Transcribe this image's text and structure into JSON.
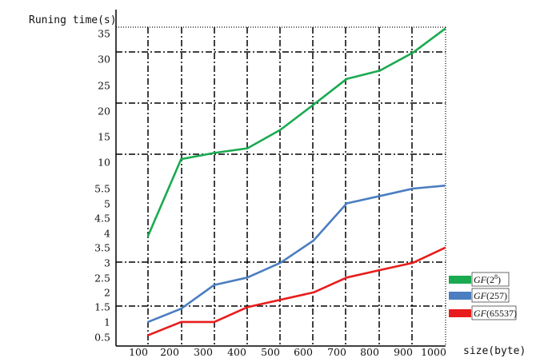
{
  "chart_data": {
    "type": "line",
    "ylabel": "Runing time(s)",
    "xlabel": "size(byte)",
    "x_ticks": [
      "100",
      "200",
      "300",
      "400",
      "500",
      "600",
      "700",
      "800",
      "900",
      "1000"
    ],
    "y_ticks": [
      "0.5",
      "1",
      "1.5",
      "2",
      "2.5",
      "3",
      "3.5",
      "4",
      "4.5",
      "5",
      "5.5",
      "10",
      "15",
      "20",
      "25",
      "30",
      "35"
    ],
    "y_scale": "piecewise: 0.5–5.5 and 10–35 segments",
    "grid": "dash-dot",
    "legend_position": "right",
    "series": [
      {
        "name": "GF(2^8)",
        "label_main": "GF",
        "label_paren_open": "(2",
        "label_sup": "8",
        "label_paren_close": ")",
        "color": "#1aaa50",
        "x": [
          128,
          228,
          328,
          428,
          528,
          628,
          728,
          828,
          928,
          1024
        ],
        "y": [
          3.9,
          10.6,
          11.8,
          12.7,
          16.3,
          21.2,
          26.2,
          27.8,
          31.3,
          35.9
        ]
      },
      {
        "name": "GF(257)",
        "label_main": "GF",
        "label_paren_open": "(257)",
        "label_sup": "",
        "label_paren_close": "",
        "color": "#4a7ec0",
        "x": [
          128,
          228,
          328,
          428,
          528,
          628,
          728,
          828,
          928,
          1024
        ],
        "y": [
          1.0,
          1.45,
          2.25,
          2.5,
          3.0,
          3.75,
          5.0,
          5.25,
          5.5,
          6.0
        ]
      },
      {
        "name": "GF(65537)",
        "label_main": "GF",
        "label_paren_open": "(65537)",
        "label_sup": "",
        "label_paren_close": "",
        "color": "#e81c1c",
        "x": [
          128,
          228,
          328,
          428,
          528,
          628,
          728,
          828,
          928,
          1024
        ],
        "y": [
          0.55,
          1.0,
          1.0,
          1.5,
          1.75,
          2.0,
          2.5,
          2.75,
          3.0,
          3.5
        ]
      }
    ]
  }
}
